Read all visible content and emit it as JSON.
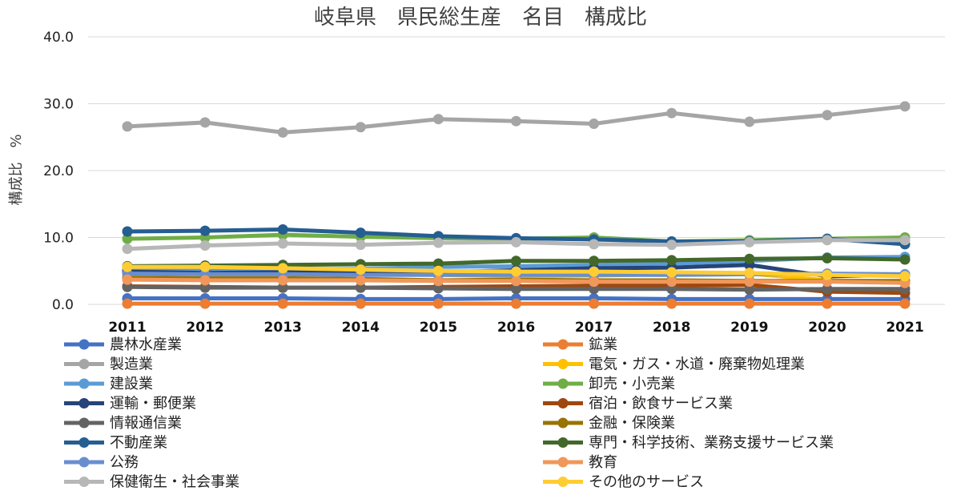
{
  "chart_data": {
    "type": "line",
    "title": "岐阜県　県民総生産　名目　構成比",
    "xlabel": "",
    "ylabel": "構成比　%",
    "ylim": [
      0,
      40
    ],
    "yticks": [
      "0.0",
      "10.0",
      "20.0",
      "30.0",
      "40.0"
    ],
    "yticks_values": [
      0,
      10,
      20,
      30,
      40
    ],
    "categories": [
      "2011",
      "2012",
      "2013",
      "2014",
      "2015",
      "2016",
      "2017",
      "2018",
      "2019",
      "2020",
      "2021"
    ],
    "grid": true,
    "legend": "bottom",
    "series": [
      {
        "name": "農林水産業",
        "color": "#4472C4",
        "values": [
          0.9,
          0.9,
          0.9,
          0.8,
          0.8,
          0.9,
          0.9,
          0.8,
          0.8,
          0.8,
          0.8
        ]
      },
      {
        "name": "鉱業",
        "color": "#ED7D31",
        "values": [
          0.1,
          0.1,
          0.1,
          0.1,
          0.1,
          0.1,
          0.1,
          0.1,
          0.1,
          0.1,
          0.1
        ]
      },
      {
        "name": "製造業",
        "color": "#A5A5A5",
        "values": [
          26.6,
          27.2,
          25.7,
          26.5,
          27.7,
          27.4,
          27.0,
          28.6,
          27.3,
          28.3,
          29.6
        ]
      },
      {
        "name": "電気・ガス・水道・廃棄物処理業",
        "color": "#FFC000",
        "values": [
          5.5,
          5.4,
          5.3,
          5.0,
          4.4,
          4.2,
          4.3,
          4.5,
          4.6,
          3.6,
          3.4
        ]
      },
      {
        "name": "建設業",
        "color": "#5B9BD5",
        "values": [
          5.2,
          5.3,
          5.3,
          5.3,
          5.6,
          5.7,
          5.9,
          6.1,
          6.5,
          7.0,
          7.1
        ]
      },
      {
        "name": "卸売・小売業",
        "color": "#70AD47",
        "values": [
          9.8,
          10.0,
          10.4,
          10.1,
          9.9,
          9.8,
          10.0,
          9.4,
          9.6,
          9.8,
          10.0
        ]
      },
      {
        "name": "運輸・郵便業",
        "color": "#264478",
        "values": [
          4.9,
          4.7,
          4.8,
          4.7,
          4.8,
          5.1,
          5.4,
          5.5,
          5.9,
          4.2,
          4.4
        ]
      },
      {
        "name": "宿泊・飲食サービス業",
        "color": "#9E480E",
        "values": [
          2.7,
          2.6,
          2.5,
          2.5,
          2.6,
          2.7,
          2.8,
          2.8,
          2.9,
          1.9,
          1.7
        ]
      },
      {
        "name": "情報通信業",
        "color": "#636363",
        "values": [
          2.6,
          2.5,
          2.5,
          2.5,
          2.4,
          2.3,
          2.3,
          2.3,
          2.2,
          2.3,
          2.3
        ]
      },
      {
        "name": "金融・保険業",
        "color": "#997300",
        "values": [
          4.0,
          3.9,
          3.9,
          3.8,
          3.6,
          3.7,
          3.6,
          3.6,
          3.5,
          3.5,
          3.5
        ]
      },
      {
        "name": "不動産業",
        "color": "#255E91",
        "values": [
          10.9,
          11.0,
          11.2,
          10.7,
          10.2,
          9.9,
          9.7,
          9.4,
          9.4,
          9.8,
          9.0
        ]
      },
      {
        "name": "専門・科学技術、業務支援サービス業",
        "color": "#43682B",
        "values": [
          5.7,
          5.8,
          5.9,
          6.0,
          6.1,
          6.5,
          6.5,
          6.6,
          6.8,
          6.9,
          6.7
        ]
      },
      {
        "name": "公務",
        "color": "#698ED0",
        "values": [
          4.6,
          4.5,
          4.5,
          4.4,
          4.4,
          4.4,
          4.4,
          4.4,
          4.5,
          4.6,
          4.5
        ]
      },
      {
        "name": "教育",
        "color": "#F1975A",
        "values": [
          3.7,
          3.6,
          3.6,
          3.6,
          3.5,
          3.5,
          3.4,
          3.4,
          3.4,
          3.4,
          3.2
        ]
      },
      {
        "name": "保健衛生・社会事業",
        "color": "#B7B7B7",
        "values": [
          8.3,
          8.8,
          9.1,
          8.9,
          9.2,
          9.3,
          9.0,
          8.9,
          9.3,
          9.6,
          9.6
        ]
      },
      {
        "name": "その他のサービス",
        "color": "#FFCD33",
        "values": [
          5.6,
          5.6,
          5.4,
          5.2,
          5.0,
          4.9,
          4.9,
          4.8,
          4.7,
          4.4,
          4.2
        ]
      }
    ]
  }
}
